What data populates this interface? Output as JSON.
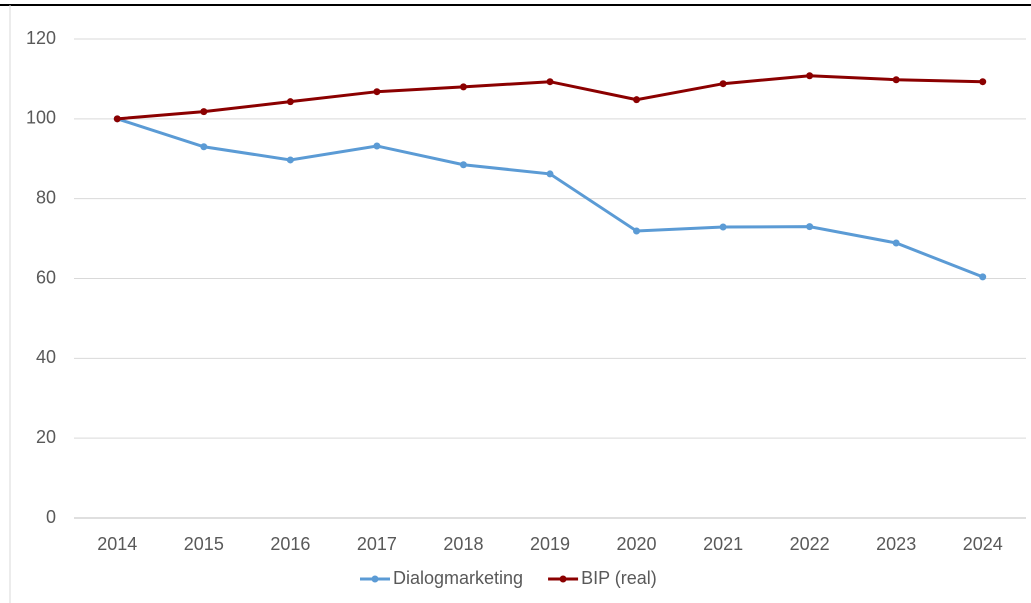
{
  "chart_data": {
    "type": "line",
    "categories": [
      "2014",
      "2015",
      "2016",
      "2017",
      "2018",
      "2019",
      "2020",
      "2021",
      "2022",
      "2023",
      "2024"
    ],
    "series": [
      {
        "name": "Dialogmarketing",
        "color": "#5b9bd5",
        "values": [
          100,
          93.0,
          89.7,
          93.2,
          88.5,
          86.2,
          71.9,
          72.9,
          73.0,
          68.9,
          60.4
        ]
      },
      {
        "name": "BIP (real)",
        "color": "#8b0000",
        "values": [
          100,
          101.8,
          104.3,
          106.8,
          108.0,
          109.3,
          104.8,
          108.8,
          110.8,
          109.8,
          109.3
        ]
      }
    ],
    "ylim": [
      0,
      120
    ],
    "yticks": [
      0,
      20,
      40,
      60,
      80,
      100,
      120
    ],
    "grid": true,
    "legend": "bottom"
  }
}
